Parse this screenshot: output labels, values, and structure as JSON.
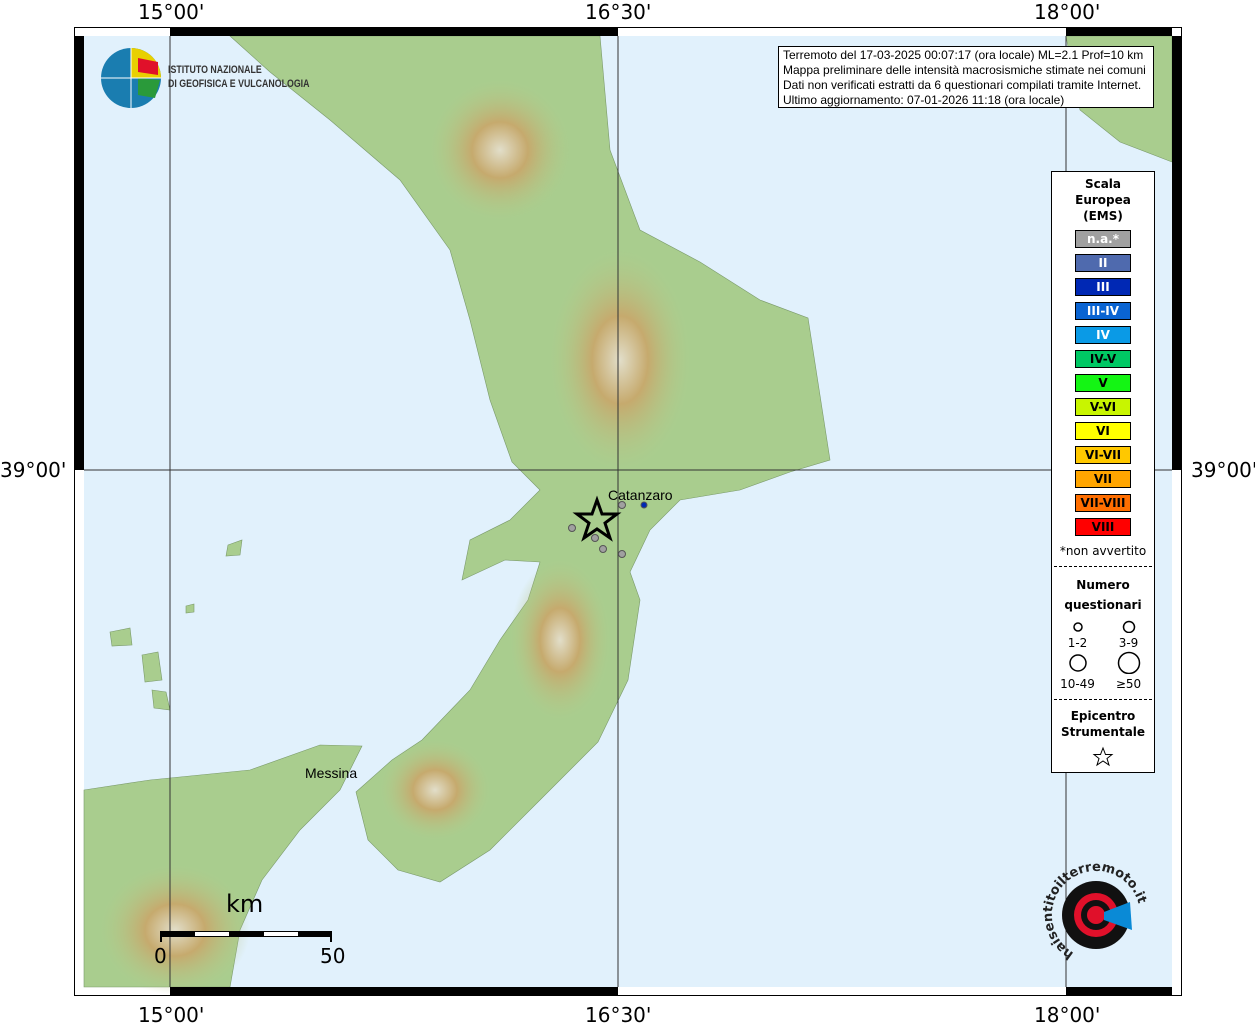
{
  "axes": {
    "lon_labels": [
      "15°00'",
      "16°30'",
      "18°00'"
    ],
    "lat_labels": [
      "39°00'"
    ]
  },
  "info": {
    "lines": [
      "Terremoto del 17-03-2025 00:07:17 (ora locale) ML=2.1 Prof=10 km",
      "Mappa preliminare delle intensità macrosismiche stimate nei comuni",
      "Dati non verificati estratti da 6 questionari compilati tramite Internet.",
      "Ultimo aggiornamento: 07-01-2026 11:18 (ora locale)"
    ]
  },
  "logo": {
    "line1": "ISTITUTO NAZIONALE",
    "line2": "DI GEOFISICA E VULCANOLOGIA"
  },
  "places": {
    "catanzaro": "Catanzaro",
    "messina": "Messina"
  },
  "scale": {
    "unit": "km",
    "start": "0",
    "end": "50"
  },
  "legend": {
    "title": [
      "Scala",
      "Europea",
      "(EMS)"
    ],
    "classes": [
      {
        "label": "n.a.*",
        "color": "#a0a0a0",
        "text": "#fff"
      },
      {
        "label": "II",
        "color": "#4f6aae",
        "text": "#fff"
      },
      {
        "label": "III",
        "color": "#0028b4",
        "text": "#fff"
      },
      {
        "label": "III-IV",
        "color": "#0a64d2",
        "text": "#fff"
      },
      {
        "label": "IV",
        "color": "#0a9ae6",
        "text": "#fff"
      },
      {
        "label": "IV-V",
        "color": "#00c864",
        "text": "#000"
      },
      {
        "label": "V",
        "color": "#14f514",
        "text": "#000"
      },
      {
        "label": "V-VI",
        "color": "#c8f500",
        "text": "#000"
      },
      {
        "label": "VI",
        "color": "#ffff00",
        "text": "#000"
      },
      {
        "label": "VI-VII",
        "color": "#ffc800",
        "text": "#000"
      },
      {
        "label": "VII",
        "color": "#ffa500",
        "text": "#000"
      },
      {
        "label": "VII-VIII",
        "color": "#ff6e00",
        "text": "#000"
      },
      {
        "label": "VIII",
        "color": "#ff0000",
        "text": "#000"
      }
    ],
    "note": "*non avvertito",
    "count_title": [
      "Numero",
      "questionari"
    ],
    "counts": [
      "1-2",
      "3-9",
      "10-49",
      "≥50"
    ],
    "epi_title": [
      "Epicentro",
      "Strumentale"
    ]
  },
  "badge": {
    "text": "haisentitoilterremoto.it"
  }
}
